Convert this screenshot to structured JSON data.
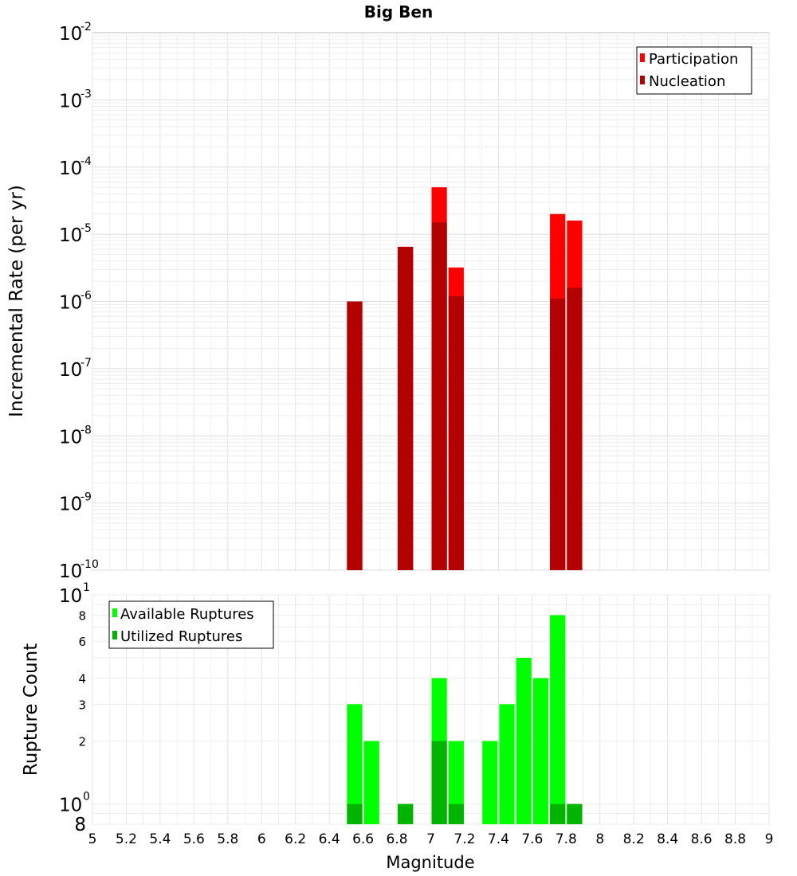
{
  "chart_data": [
    {
      "type": "bar",
      "title": "Big Ben",
      "xlabel": "",
      "ylabel": "Incremental Rate (per yr)",
      "yscale": "log",
      "xlim": [
        5,
        9
      ],
      "ylim": [
        1e-10,
        0.01
      ],
      "y_tick_labels": [
        {
          "base": "10",
          "exp": "-10"
        },
        {
          "base": "10",
          "exp": "-9"
        },
        {
          "base": "10",
          "exp": "-8"
        },
        {
          "base": "10",
          "exp": "-7"
        },
        {
          "base": "10",
          "exp": "-6"
        },
        {
          "base": "10",
          "exp": "-5"
        },
        {
          "base": "10",
          "exp": "-4"
        },
        {
          "base": "10",
          "exp": "-3"
        },
        {
          "base": "10",
          "exp": "-2"
        }
      ],
      "legend": "top-right",
      "grid": true,
      "series": [
        {
          "name": "Participation",
          "color": "#ff0000",
          "x": [
            6.55,
            6.85,
            7.05,
            7.15,
            7.75,
            7.85
          ],
          "values": [
            1e-06,
            6.5e-06,
            5e-05,
            3.2e-06,
            2e-05,
            1.6e-05
          ]
        },
        {
          "name": "Nucleation",
          "color": "#b30000",
          "x": [
            6.55,
            6.85,
            7.05,
            7.15,
            7.75,
            7.85
          ],
          "values": [
            1e-06,
            6.5e-06,
            1.5e-05,
            1.2e-06,
            1.1e-06,
            1.6e-06
          ]
        }
      ]
    },
    {
      "type": "bar",
      "title": "",
      "xlabel": "Magnitude",
      "ylabel": "Rupture Count",
      "yscale": "log",
      "xlim": [
        5,
        9
      ],
      "ylim": [
        0.8,
        10
      ],
      "x_tick_labels": [
        "5",
        "5.2",
        "5.4",
        "5.6",
        "5.8",
        "6",
        "6.2",
        "6.4",
        "6.6",
        "6.8",
        "7",
        "7.2",
        "7.4",
        "7.6",
        "7.8",
        "8",
        "8.2",
        "8.4",
        "8.6",
        "8.8",
        "9"
      ],
      "y_ticks": [
        {
          "value": 2,
          "label": "2"
        },
        {
          "value": 3,
          "label": "3"
        },
        {
          "value": 4,
          "label": "4"
        },
        {
          "value": 6,
          "label": "6"
        },
        {
          "value": 8,
          "label": "8"
        }
      ],
      "y_tick_decades": [
        {
          "value": 1,
          "base": "10",
          "exp": "0"
        },
        {
          "value": 10,
          "base": "10",
          "exp": "1"
        }
      ],
      "y_bottom_label": "8",
      "legend": "top-left",
      "grid": true,
      "series": [
        {
          "name": "Available Ruptures",
          "color": "#00ff00",
          "x": [
            6.55,
            6.65,
            6.85,
            7.05,
            7.15,
            7.35,
            7.45,
            7.55,
            7.65,
            7.75,
            7.85
          ],
          "values": [
            3,
            2,
            1,
            4,
            2,
            2,
            3,
            5,
            4,
            8,
            1
          ]
        },
        {
          "name": "Utilized Ruptures",
          "color": "#00b400",
          "x": [
            6.55,
            6.85,
            7.05,
            7.15,
            7.75,
            7.85
          ],
          "values": [
            1,
            1,
            2,
            1,
            1,
            1
          ]
        }
      ]
    }
  ]
}
